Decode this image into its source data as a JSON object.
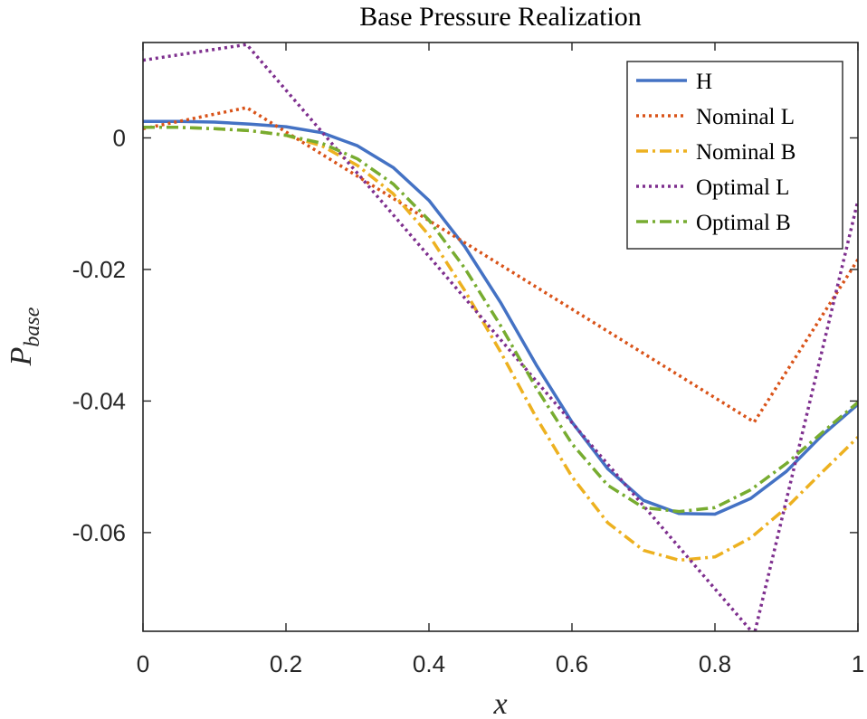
{
  "chart_data": {
    "type": "line",
    "title": "Base Pressure Realization",
    "xlabel": "x",
    "ylabel_main": "P",
    "ylabel_sub": "base",
    "xlim": [
      0,
      1
    ],
    "ylim": [
      -0.075,
      0.0145
    ],
    "xticks": [
      0,
      0.2,
      0.4,
      0.6,
      0.8,
      1
    ],
    "xtick_labels": [
      "0",
      "0.2",
      "0.4",
      "0.6",
      "0.8",
      "1"
    ],
    "yticks": [
      0,
      -0.02,
      -0.04,
      -0.06
    ],
    "ytick_labels": [
      "0",
      "-0.02",
      "-0.04",
      "-0.06"
    ],
    "grid": false,
    "legend_position": "top-right",
    "series": [
      {
        "name": "H",
        "color": "#4472C4",
        "style": "solid",
        "x": [
          0,
          0.05,
          0.1,
          0.15,
          0.2,
          0.25,
          0.3,
          0.35,
          0.4,
          0.45,
          0.5,
          0.55,
          0.6,
          0.65,
          0.7,
          0.75,
          0.8,
          0.85,
          0.9,
          0.95,
          1.0
        ],
        "y": [
          0.0025,
          0.0025,
          0.0024,
          0.0021,
          0.0017,
          0.0008,
          -0.0012,
          -0.0045,
          -0.0095,
          -0.0165,
          -0.025,
          -0.0345,
          -0.0432,
          -0.0503,
          -0.0551,
          -0.0571,
          -0.0572,
          -0.0548,
          -0.0507,
          -0.0452,
          -0.0405
        ]
      },
      {
        "name": "Nominal L",
        "color": "#D95319",
        "style": "dotted",
        "x": [
          0,
          0.145,
          0.855,
          1.0
        ],
        "y": [
          0.0014,
          0.0046,
          -0.0432,
          -0.0185
        ]
      },
      {
        "name": "Nominal B",
        "color": "#EDB120",
        "style": "dashdot",
        "x": [
          0,
          0.05,
          0.1,
          0.15,
          0.2,
          0.25,
          0.3,
          0.35,
          0.4,
          0.45,
          0.5,
          0.55,
          0.6,
          0.65,
          0.7,
          0.75,
          0.8,
          0.85,
          0.9,
          0.95,
          1.0
        ],
        "y": [
          0.0016,
          0.0016,
          0.0014,
          0.0011,
          0.0004,
          -0.0012,
          -0.0042,
          -0.0085,
          -0.0148,
          -0.0232,
          -0.0325,
          -0.0425,
          -0.0515,
          -0.0585,
          -0.0627,
          -0.0642,
          -0.0637,
          -0.0608,
          -0.0562,
          -0.0508,
          -0.0455
        ]
      },
      {
        "name": "Optimal L",
        "color": "#7E2F8E",
        "style": "dotted",
        "x": [
          0,
          0.145,
          0.855,
          1.0
        ],
        "y": [
          0.0118,
          0.0142,
          -0.0755,
          -0.0095
        ]
      },
      {
        "name": "Optimal B",
        "color": "#77AC30",
        "style": "dashdot",
        "x": [
          0,
          0.05,
          0.1,
          0.15,
          0.2,
          0.25,
          0.3,
          0.35,
          0.4,
          0.45,
          0.5,
          0.55,
          0.6,
          0.65,
          0.7,
          0.75,
          0.8,
          0.85,
          0.9,
          0.95,
          1.0
        ],
        "y": [
          0.0016,
          0.0016,
          0.0014,
          0.0011,
          0.0004,
          -0.0008,
          -0.0032,
          -0.007,
          -0.0125,
          -0.0198,
          -0.0285,
          -0.038,
          -0.0465,
          -0.0528,
          -0.0562,
          -0.0568,
          -0.0562,
          -0.0535,
          -0.0495,
          -0.0448,
          -0.0402
        ]
      }
    ]
  }
}
